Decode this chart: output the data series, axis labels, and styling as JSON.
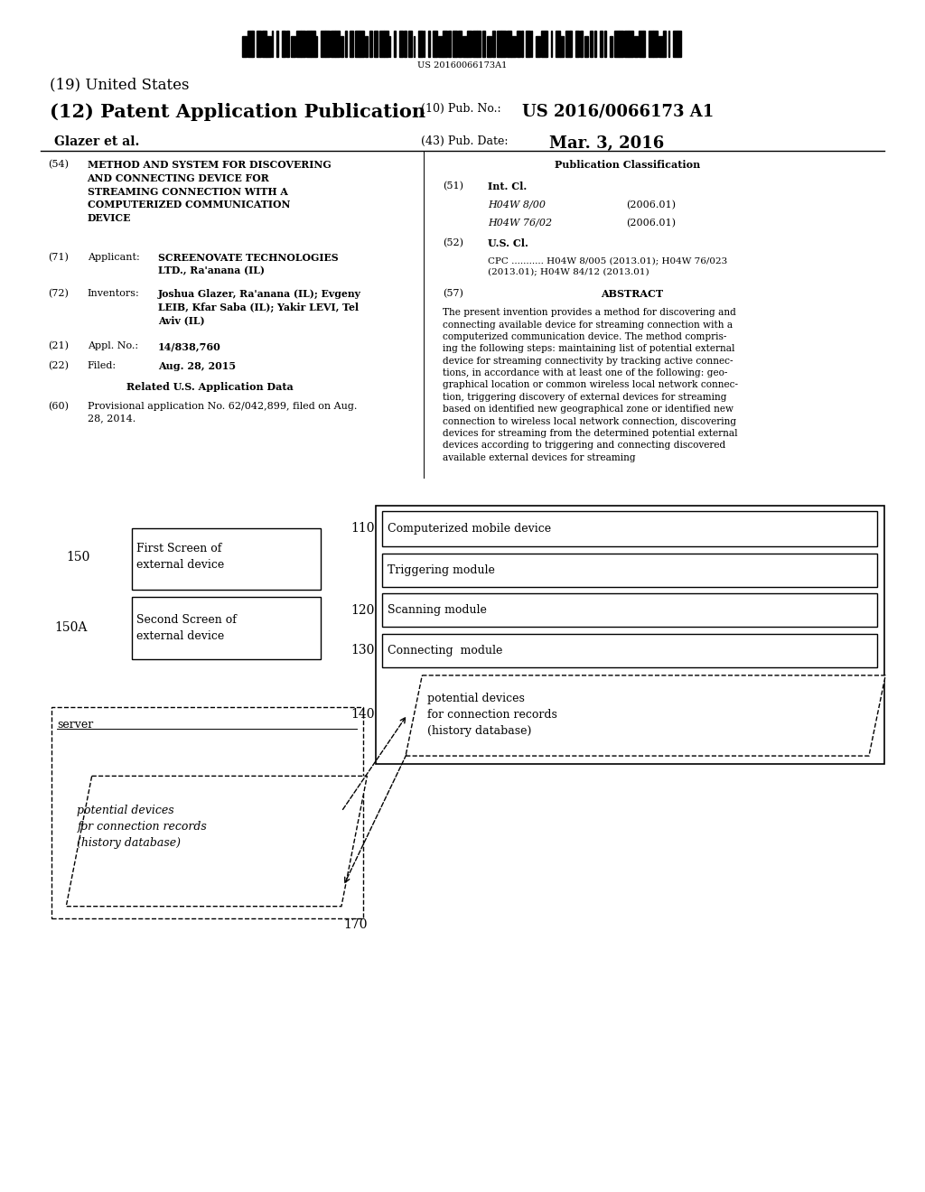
{
  "bg_color": "#ffffff",
  "page_width": 10.24,
  "page_height": 13.2,
  "barcode_text": "US 20160066173A1",
  "title_19": "(19) United States",
  "title_12": "(12) Patent Application Publication",
  "pub_no_label": "(10) Pub. No.:",
  "pub_no_value": "US 2016/0066173 A1",
  "inventor_name": "Glazer et al.",
  "pub_date_label": "(43) Pub. Date:",
  "pub_date_value": "Mar. 3, 2016",
  "field_54_label": "(54)",
  "field_54_text": "METHOD AND SYSTEM FOR DISCOVERING\nAND CONNECTING DEVICE FOR\nSTREAMING CONNECTION WITH A\nCOMPUTERIZED COMMUNICATION\nDEVICE",
  "pub_class_title": "Publication Classification",
  "field_51_label": "(51)",
  "int_cl_label": "Int. Cl.",
  "int_cl_1": "H04W 8/00",
  "int_cl_1_date": "(2006.01)",
  "int_cl_2": "H04W 76/02",
  "int_cl_2_date": "(2006.01)",
  "field_52_label": "(52)",
  "us_cl_label": "U.S. Cl.",
  "cpc_text": "CPC ........... H04W 8/005 (2013.01); H04W 76/023\n(2013.01); H04W 84/12 (2013.01)",
  "field_71_label": "(71)",
  "applicant_label": "Applicant:",
  "applicant_text": "SCREENOVATE TECHNOLOGIES\nLTD., Ra'anana (IL)",
  "field_72_label": "(72)",
  "inventors_label": "Inventors:",
  "inventors_text": "Joshua Glazer, Ra'anana (IL); Evgeny\nLEIB, Kfar Saba (IL); Yakir LEVI, Tel\nAviv (IL)",
  "field_21_label": "(21)",
  "appl_no_label": "Appl. No.:",
  "appl_no_value": "14/838,760",
  "field_22_label": "(22)",
  "filed_label": "Filed:",
  "filed_value": "Aug. 28, 2015",
  "related_title": "Related U.S. Application Data",
  "field_60_label": "(60)",
  "provisional_text": "Provisional application No. 62/042,899, filed on Aug.\n28, 2014.",
  "abstract_label": "(57)",
  "abstract_title": "ABSTRACT",
  "abstract_text": "The present invention provides a method for discovering and\nconnecting available device for streaming connection with a\ncomputerized communication device. The method compris-\ning the following steps: maintaining list of potential external\ndevice for streaming connectivity by tracking active connec-\ntions, in accordance with at least one of the following: geo-\ngraphical location or common wireless local network connec-\ntion, triggering discovery of external devices for streaming\nbased on identified new geographical zone or identified new\nconnection to wireless local network connection, discovering\ndevices for streaming from the determined potential external\ndevices according to triggering and connecting discovered\navailable external devices for streaming",
  "diagram_label_150": "150",
  "diagram_label_150A": "150A",
  "diagram_label_110": "110",
  "diagram_label_120": "120",
  "diagram_label_130": "130",
  "diagram_label_140": "140",
  "diagram_label_170": "170",
  "box_first_screen": "First Screen of\nexternal device",
  "box_second_screen": "Second Screen of\nexternal device",
  "box_mobile_device": "Computerized mobile device",
  "box_triggering": "Triggering module",
  "box_scanning": "Scanning module",
  "box_connecting": "Connecting  module",
  "box_server": "server",
  "box_potential_left": "potential devices\nfor connection records\n(history database)",
  "box_potential_right": "potential devices\nfor connection records\n(history database)"
}
